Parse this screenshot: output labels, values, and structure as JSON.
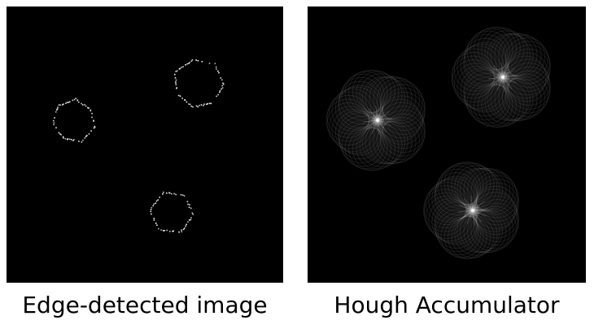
{
  "panels": [
    {
      "caption": "Edge-detected image"
    },
    {
      "caption": "Hough Accumulator"
    }
  ],
  "colors": {
    "background": "#ffffff",
    "panel_background": "#000000",
    "foreground": "#ffffff"
  }
}
